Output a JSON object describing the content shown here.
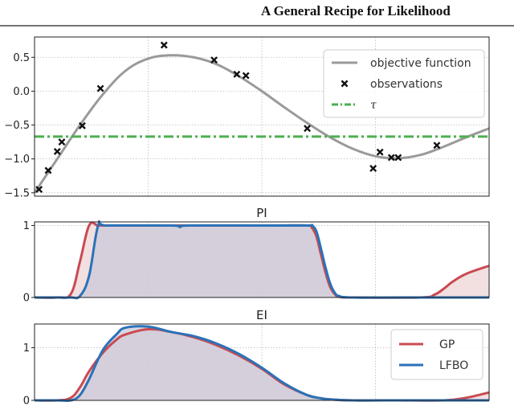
{
  "header": {
    "title": "A General Recipe for Likelihood"
  },
  "colors": {
    "objective": "#9a9a9a",
    "observation": "#111111",
    "tau": "#4caf50",
    "gp": "#c94a52",
    "gp_fill": "#eed4d4",
    "lfbo": "#2a72b8",
    "lfbo_fill": "#c9c9d8"
  },
  "chart_data": [
    {
      "type": "line",
      "panel": "objective",
      "title": "",
      "xlim": [
        0,
        1
      ],
      "ylim": [
        -1.55,
        0.8
      ],
      "yticks": [
        0.5,
        0.0,
        -0.5,
        -1.0,
        -1.5
      ],
      "ytick_labels": [
        "0.5",
        "0.0",
        "−0.5",
        "−1.0",
        "−1.5"
      ],
      "xgrid": [
        0.25,
        0.5,
        0.75
      ],
      "grid": true,
      "legend": {
        "placement": "top-right",
        "entries": [
          "objective function",
          "observations",
          "τ"
        ]
      },
      "objective_function": {
        "name": "objective function",
        "x": [
          0.0,
          0.05,
          0.1,
          0.15,
          0.2,
          0.25,
          0.3,
          0.35,
          0.4,
          0.45,
          0.5,
          0.55,
          0.6,
          0.65,
          0.7,
          0.75,
          0.8,
          0.85,
          0.9,
          0.95,
          1.0
        ],
        "y": [
          -1.5,
          -1.0,
          -0.5,
          -0.05,
          0.3,
          0.48,
          0.53,
          0.5,
          0.4,
          0.22,
          0.0,
          -0.24,
          -0.47,
          -0.68,
          -0.85,
          -0.96,
          -0.99,
          -0.94,
          -0.82,
          -0.68,
          -0.55
        ]
      },
      "observations": {
        "name": "observations",
        "x": [
          0.01,
          0.03,
          0.05,
          0.06,
          0.105,
          0.145,
          0.285,
          0.395,
          0.445,
          0.465,
          0.6,
          0.745,
          0.76,
          0.785,
          0.8,
          0.885
        ],
        "y": [
          -1.45,
          -1.17,
          -0.89,
          -0.75,
          -0.51,
          0.04,
          0.68,
          0.46,
          0.25,
          0.23,
          -0.55,
          -1.14,
          -0.9,
          -0.98,
          -0.98,
          -0.8
        ]
      },
      "tau": {
        "name": "τ",
        "value": -0.67
      }
    },
    {
      "type": "area",
      "panel": "pi",
      "title": "PI",
      "xlim": [
        0,
        1
      ],
      "ylim": [
        0,
        1.05
      ],
      "yticks": [
        0,
        1
      ],
      "ytick_labels": [
        "0",
        "1"
      ],
      "xgrid": [
        0.25,
        0.5,
        0.75
      ],
      "grid": true,
      "x": [
        0.0,
        0.05,
        0.08,
        0.1,
        0.12,
        0.14,
        0.16,
        0.3,
        0.32,
        0.34,
        0.5,
        0.6,
        0.61,
        0.62,
        0.63,
        0.64,
        0.65,
        0.66,
        0.67,
        0.7,
        0.85,
        0.88,
        0.9,
        0.92,
        0.95,
        1.0
      ],
      "series": [
        {
          "name": "GP",
          "values": [
            0.0,
            0.0,
            0.05,
            0.5,
            1.0,
            1.0,
            1.0,
            1.0,
            1.0,
            1.0,
            1.0,
            1.0,
            0.97,
            0.85,
            0.6,
            0.35,
            0.15,
            0.05,
            0.01,
            0.0,
            0.0,
            0.04,
            0.12,
            0.22,
            0.33,
            0.44
          ]
        },
        {
          "name": "LFBO",
          "values": [
            0.0,
            0.0,
            0.0,
            0.02,
            0.3,
            1.0,
            1.0,
            1.0,
            0.98,
            1.0,
            1.0,
            1.0,
            1.0,
            0.92,
            0.68,
            0.42,
            0.2,
            0.07,
            0.02,
            0.0,
            0.0,
            0.0,
            0.0,
            0.0,
            0.0,
            0.0
          ]
        }
      ]
    },
    {
      "type": "area",
      "panel": "ei",
      "title": "EI",
      "xlim": [
        0,
        1
      ],
      "ylim": [
        0,
        1.45
      ],
      "yticks": [
        0,
        1
      ],
      "ytick_labels": [
        "0",
        "1"
      ],
      "xgrid": [
        0.25,
        0.5,
        0.75
      ],
      "grid": true,
      "legend": {
        "placement": "bottom-right",
        "entries": [
          "GP",
          "LFBO"
        ]
      },
      "x": [
        0.0,
        0.05,
        0.08,
        0.1,
        0.12,
        0.15,
        0.18,
        0.2,
        0.25,
        0.3,
        0.35,
        0.4,
        0.45,
        0.5,
        0.55,
        0.6,
        0.63,
        0.65,
        0.7,
        0.8,
        0.9,
        0.95,
        1.0
      ],
      "series": [
        {
          "name": "GP",
          "values": [
            0.0,
            0.0,
            0.05,
            0.25,
            0.55,
            0.9,
            1.15,
            1.25,
            1.35,
            1.3,
            1.2,
            1.05,
            0.85,
            0.6,
            0.3,
            0.1,
            0.04,
            0.02,
            0.0,
            0.0,
            0.0,
            0.05,
            0.15
          ]
        },
        {
          "name": "LFBO",
          "values": [
            0.0,
            0.0,
            0.0,
            0.1,
            0.4,
            0.95,
            1.25,
            1.38,
            1.4,
            1.3,
            1.22,
            1.08,
            0.88,
            0.62,
            0.32,
            0.1,
            0.04,
            0.02,
            0.0,
            0.0,
            0.0,
            0.0,
            0.0
          ]
        }
      ]
    }
  ]
}
